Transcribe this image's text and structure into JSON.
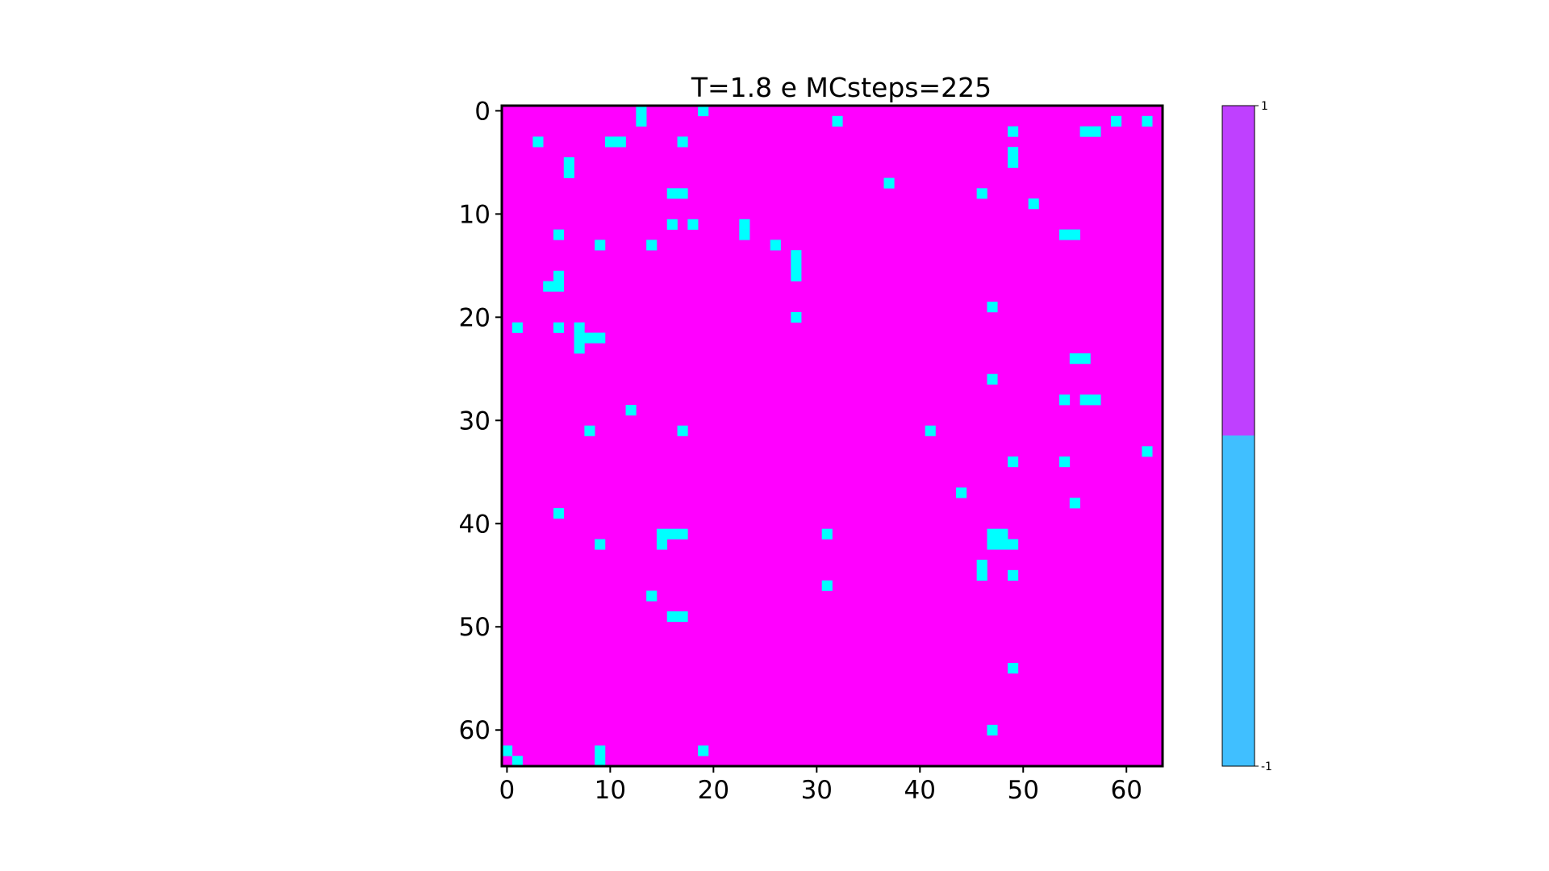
{
  "chart_data": {
    "type": "heatmap",
    "title": "T=1.8 e MCsteps=225",
    "grid_size": 64,
    "xlim": [
      0,
      63
    ],
    "ylim": [
      63,
      0
    ],
    "x_ticks": [
      "0",
      "10",
      "20",
      "30",
      "40",
      "50",
      "60"
    ],
    "y_ticks": [
      "0",
      "10",
      "20",
      "30",
      "40",
      "50",
      "60"
    ],
    "background_value": 1,
    "cells_value_minus1": [
      [
        0,
        13
      ],
      [
        1,
        13
      ],
      [
        0,
        19
      ],
      [
        1,
        32
      ],
      [
        1,
        59
      ],
      [
        1,
        62
      ],
      [
        2,
        49
      ],
      [
        2,
        56
      ],
      [
        2,
        57
      ],
      [
        3,
        3
      ],
      [
        3,
        10
      ],
      [
        3,
        11
      ],
      [
        3,
        17
      ],
      [
        4,
        49
      ],
      [
        5,
        6
      ],
      [
        5,
        49
      ],
      [
        6,
        6
      ],
      [
        7,
        37
      ],
      [
        8,
        16
      ],
      [
        8,
        17
      ],
      [
        8,
        46
      ],
      [
        9,
        51
      ],
      [
        11,
        16
      ],
      [
        11,
        18
      ],
      [
        11,
        23
      ],
      [
        12,
        5
      ],
      [
        12,
        23
      ],
      [
        12,
        54
      ],
      [
        12,
        55
      ],
      [
        13,
        9
      ],
      [
        13,
        14
      ],
      [
        13,
        26
      ],
      [
        14,
        28
      ],
      [
        15,
        28
      ],
      [
        16,
        5
      ],
      [
        16,
        28
      ],
      [
        17,
        4
      ],
      [
        17,
        5
      ],
      [
        19,
        47
      ],
      [
        20,
        28
      ],
      [
        21,
        1
      ],
      [
        21,
        5
      ],
      [
        21,
        7
      ],
      [
        22,
        7
      ],
      [
        22,
        8
      ],
      [
        22,
        9
      ],
      [
        23,
        7
      ],
      [
        24,
        55
      ],
      [
        24,
        56
      ],
      [
        26,
        47
      ],
      [
        28,
        54
      ],
      [
        28,
        56
      ],
      [
        28,
        57
      ],
      [
        29,
        12
      ],
      [
        31,
        8
      ],
      [
        31,
        17
      ],
      [
        31,
        41
      ],
      [
        33,
        62
      ],
      [
        34,
        49
      ],
      [
        34,
        54
      ],
      [
        37,
        44
      ],
      [
        38,
        55
      ],
      [
        39,
        5
      ],
      [
        41,
        15
      ],
      [
        41,
        16
      ],
      [
        41,
        17
      ],
      [
        41,
        31
      ],
      [
        41,
        47
      ],
      [
        41,
        48
      ],
      [
        42,
        9
      ],
      [
        42,
        15
      ],
      [
        42,
        47
      ],
      [
        42,
        48
      ],
      [
        42,
        49
      ],
      [
        44,
        46
      ],
      [
        45,
        46
      ],
      [
        45,
        49
      ],
      [
        46,
        31
      ],
      [
        47,
        14
      ],
      [
        49,
        16
      ],
      [
        49,
        17
      ],
      [
        54,
        49
      ],
      [
        60,
        47
      ],
      [
        62,
        0
      ],
      [
        62,
        9
      ],
      [
        62,
        19
      ],
      [
        63,
        1
      ],
      [
        63,
        9
      ]
    ],
    "colorbar": {
      "ticks": [
        "1",
        "-1"
      ],
      "upper_color": "#bf40ff",
      "lower_color": "#40bfff"
    },
    "colors": {
      "plus1": "#ff00ff",
      "minus1": "#00ffff"
    }
  }
}
